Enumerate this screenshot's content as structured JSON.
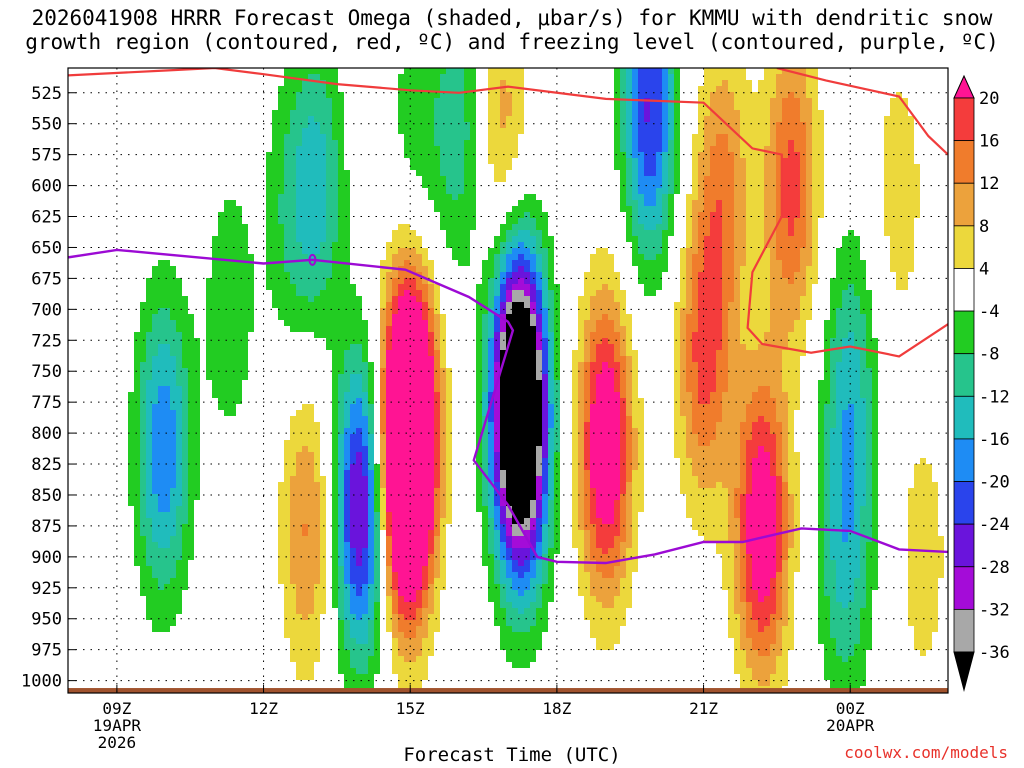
{
  "title": {
    "line1": "2026041908 HRRR Forecast Omega (shaded, μbar/s) for KMMU with dendritic snow",
    "line2": "growth region (contoured, red, ºC) and freezing level (contoured, purple, ºC)"
  },
  "credit": "coolwx.com/models",
  "chart_data": {
    "type": "heatmap",
    "title": "2026041908 HRRR Forecast Omega (shaded, μbar/s) for KMMU with dendritic snow growth region (contoured, red, ºC) and freezing level (contoured, purple, ºC)",
    "xlabel": "Forecast Time (UTC)",
    "ylabel": "",
    "x_range_hours": [
      8,
      26
    ],
    "x_ticks": [
      {
        "hour": 9,
        "label": "09Z",
        "sub": [
          "19APR",
          "2026"
        ]
      },
      {
        "hour": 12,
        "label": "12Z",
        "sub": []
      },
      {
        "hour": 15,
        "label": "15Z",
        "sub": []
      },
      {
        "hour": 18,
        "label": "18Z",
        "sub": []
      },
      {
        "hour": 21,
        "label": "21Z",
        "sub": []
      },
      {
        "hour": 24,
        "label": "00Z",
        "sub": [
          "20APR"
        ]
      }
    ],
    "y_range": [
      1010,
      505
    ],
    "y_scale": "linear-pressure",
    "y_ticks": [
      525,
      550,
      575,
      600,
      625,
      650,
      675,
      700,
      725,
      750,
      775,
      800,
      825,
      850,
      875,
      900,
      925,
      950,
      975,
      1000
    ],
    "grid": true,
    "colorbar": {
      "levels": [
        -36,
        -32,
        -28,
        -24,
        -20,
        -16,
        -12,
        -8,
        -4,
        4,
        8,
        12,
        16,
        20
      ],
      "labels": [
        "20",
        "16",
        "12",
        "8",
        "4",
        "-4",
        "-8",
        "-12",
        "-16",
        "-20",
        "-24",
        "-28",
        "-32",
        "-36"
      ],
      "bins": [
        {
          "range": ">20",
          "color": "#ff1493"
        },
        {
          "range": "16 to 20",
          "color": "#f43c3c"
        },
        {
          "range": "12 to 16",
          "color": "#f07c2c"
        },
        {
          "range": "8 to 12",
          "color": "#eca23c"
        },
        {
          "range": "4 to 8",
          "color": "#ecd83c"
        },
        {
          "range": "-4 to 4",
          "color": "#ffffff"
        },
        {
          "range": "-8 to -4",
          "color": "#22cc22"
        },
        {
          "range": "-12 to -8",
          "color": "#26c48c"
        },
        {
          "range": "-16 to -12",
          "color": "#20bcbc"
        },
        {
          "range": "-20 to -16",
          "color": "#1e8cf4"
        },
        {
          "range": "-24 to -20",
          "color": "#2a44ec"
        },
        {
          "range": "-28 to -24",
          "color": "#6a14dc"
        },
        {
          "range": "-32 to -28",
          "color": "#a40cd8"
        },
        {
          "range": "-36 to -32",
          "color": "#a8a8a8"
        },
        {
          "range": "<-36",
          "color": "#000000"
        }
      ]
    },
    "omega_features": [
      {
        "hour": 9.9,
        "p": 815,
        "sign": "up",
        "peak": -9.6
      },
      {
        "hour": 10.0,
        "p": 810,
        "sign": "up",
        "peak": -10.0
      },
      {
        "hour": 11.3,
        "p": 700,
        "sign": "up",
        "peak": -6.8
      },
      {
        "hour": 12.5,
        "p": 625,
        "sign": "up",
        "peak": -6.4
      },
      {
        "hour": 13.1,
        "p": 600,
        "sign": "up",
        "peak": -13.0
      },
      {
        "hour": 15.1,
        "p": 560,
        "sign": "up",
        "peak": -6.4
      },
      {
        "hour": 16.0,
        "p": 555,
        "sign": "up",
        "peak": -10.4
      },
      {
        "hour": 16.9,
        "p": 560,
        "sign": "down",
        "peak": 10.5
      },
      {
        "hour": 12.9,
        "p": 875,
        "sign": "down",
        "peak": 12.6
      },
      {
        "hour": 14.0,
        "p": 860,
        "sign": "up",
        "peak": -30.4
      },
      {
        "hour": 14.9,
        "p": 840,
        "sign": "down",
        "peak": 30.4
      },
      {
        "hour": 15.0,
        "p": 780,
        "sign": "down",
        "peak": 31.0
      },
      {
        "hour": 17.2,
        "p": 760,
        "sign": "up",
        "peak": -40.0
      },
      {
        "hour": 17.3,
        "p": 815,
        "sign": "up",
        "peak": -26.4
      },
      {
        "hour": 19.0,
        "p": 810,
        "sign": "down",
        "peak": 27.0
      },
      {
        "hour": 19.9,
        "p": 540,
        "sign": "up",
        "peak": -24.4
      },
      {
        "hour": 21.4,
        "p": 600,
        "sign": "down",
        "peak": 12.6
      },
      {
        "hour": 21.0,
        "p": 740,
        "sign": "down",
        "peak": 16.6
      },
      {
        "hour": 22.2,
        "p": 875,
        "sign": "down",
        "peak": 26.2
      },
      {
        "hour": 22.8,
        "p": 600,
        "sign": "down",
        "peak": 17.6
      },
      {
        "hour": 23.9,
        "p": 900,
        "sign": "up",
        "peak": -12.4
      },
      {
        "hour": 24.0,
        "p": 760,
        "sign": "up",
        "peak": -12.2
      },
      {
        "hour": 25.0,
        "p": 605,
        "sign": "down",
        "peak": 6.4
      },
      {
        "hour": 25.5,
        "p": 900,
        "sign": "down",
        "peak": 6.2
      }
    ],
    "freezing_level": {
      "color": "#9c0ad4",
      "points": [
        [
          8.0,
          658
        ],
        [
          9.0,
          652
        ],
        [
          12.0,
          663
        ],
        [
          13.0,
          660
        ],
        [
          14.9,
          668
        ],
        [
          16.2,
          690
        ],
        [
          17.0,
          710
        ],
        [
          17.1,
          717
        ],
        [
          16.3,
          822
        ],
        [
          17.0,
          858
        ],
        [
          17.6,
          900
        ],
        [
          18.0,
          904
        ],
        [
          19.0,
          905
        ],
        [
          20.0,
          898
        ],
        [
          21.0,
          888
        ],
        [
          21.8,
          888
        ],
        [
          23.0,
          877
        ],
        [
          24.0,
          879
        ],
        [
          25.0,
          894
        ],
        [
          26.0,
          896
        ]
      ]
    },
    "dendritic_zone": {
      "color": "#f03c3c",
      "segments": [
        [
          [
            8.0,
            511
          ],
          [
            10.0,
            507
          ],
          [
            11.0,
            505
          ],
          [
            12.0,
            510
          ],
          [
            13.5,
            518
          ],
          [
            15.0,
            523
          ],
          [
            16.0,
            525
          ],
          [
            17.0,
            520
          ],
          [
            19.0,
            530
          ],
          [
            21.0,
            533
          ],
          [
            22.0,
            570
          ],
          [
            22.6,
            575
          ],
          [
            22.6,
            625
          ],
          [
            22.0,
            670
          ],
          [
            21.9,
            715
          ],
          [
            22.2,
            728
          ],
          [
            23.2,
            735
          ],
          [
            24.0,
            730
          ],
          [
            25.0,
            738
          ],
          [
            26.0,
            712
          ]
        ],
        [
          [
            22.5,
            505
          ],
          [
            23.5,
            515
          ],
          [
            25.0,
            528
          ],
          [
            25.6,
            560
          ],
          [
            26.0,
            575
          ]
        ]
      ]
    },
    "ground_surface_hpa": [
      1006,
      1010
    ]
  }
}
